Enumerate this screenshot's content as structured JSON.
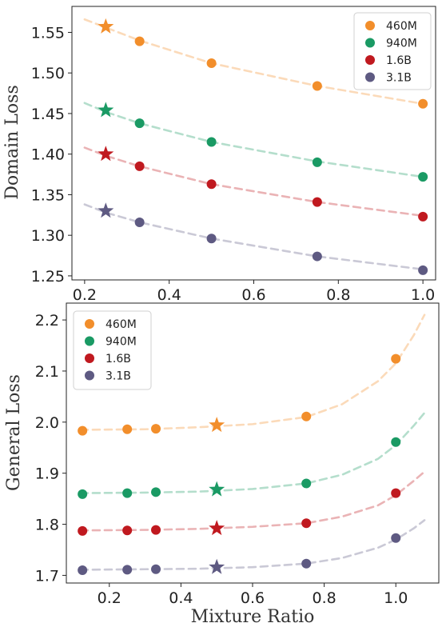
{
  "colors": {
    "460M": "#F28E2B",
    "940M": "#1A9A64",
    "1.6B": "#C0191F",
    "3.1B": "#5E5A82"
  },
  "chart_data": [
    {
      "type": "scatter",
      "title": "",
      "xlabel": "",
      "ylabel": "Domain Loss",
      "xlim": [
        0.17,
        1.03
      ],
      "ylim": [
        1.245,
        1.582
      ],
      "xticks": [
        "0.2",
        "0.4",
        "0.6",
        "0.8",
        "1.0"
      ],
      "yticks": [
        "1.25",
        "1.30",
        "1.35",
        "1.40",
        "1.45",
        "1.50",
        "1.55"
      ],
      "grid": false,
      "legend": "top-right",
      "fit_x_range": [
        0.2,
        1.0
      ],
      "series": [
        {
          "name": "460M",
          "x": [
            0.33,
            0.5,
            0.75,
            1.0
          ],
          "y": [
            1.539,
            1.512,
            1.484,
            1.462
          ],
          "star": {
            "x": 0.25,
            "y": 1.557
          },
          "fit": {
            "x": [
              0.2,
              0.25,
              0.33,
              0.5,
              0.75,
              1.0
            ],
            "y": [
              1.566,
              1.556,
              1.54,
              1.512,
              1.484,
              1.462
            ]
          }
        },
        {
          "name": "940M",
          "x": [
            0.33,
            0.5,
            0.75,
            1.0
          ],
          "y": [
            1.438,
            1.415,
            1.39,
            1.372
          ],
          "star": {
            "x": 0.25,
            "y": 1.454
          },
          "fit": {
            "x": [
              0.2,
              0.25,
              0.33,
              0.5,
              0.75,
              1.0
            ],
            "y": [
              1.463,
              1.452,
              1.438,
              1.415,
              1.391,
              1.372
            ]
          }
        },
        {
          "name": "1.6B",
          "x": [
            0.33,
            0.5,
            0.75,
            1.0
          ],
          "y": [
            1.385,
            1.363,
            1.341,
            1.323
          ],
          "star": {
            "x": 0.25,
            "y": 1.4
          },
          "fit": {
            "x": [
              0.2,
              0.25,
              0.33,
              0.5,
              0.75,
              1.0
            ],
            "y": [
              1.408,
              1.398,
              1.385,
              1.363,
              1.341,
              1.324
            ]
          }
        },
        {
          "name": "3.1B",
          "x": [
            0.33,
            0.5,
            0.75,
            1.0
          ],
          "y": [
            1.316,
            1.296,
            1.274,
            1.257
          ],
          "star": {
            "x": 0.25,
            "y": 1.33
          },
          "fit": {
            "x": [
              0.2,
              0.25,
              0.33,
              0.5,
              0.75,
              1.0
            ],
            "y": [
              1.338,
              1.328,
              1.316,
              1.296,
              1.274,
              1.258
            ]
          }
        }
      ]
    },
    {
      "type": "scatter",
      "title": "",
      "xlabel": "Mixture Ratio",
      "ylabel": "General  Loss",
      "xlim": [
        0.08,
        1.12
      ],
      "ylim": [
        1.685,
        2.233
      ],
      "xticks": [
        "0.2",
        "0.4",
        "0.6",
        "0.8",
        "1.0"
      ],
      "yticks": [
        "1.7",
        "1.8",
        "1.9",
        "2.0",
        "2.1",
        "2.2"
      ],
      "grid": false,
      "legend": "top-left",
      "fit_x_range": [
        0.12,
        1.08
      ],
      "series": [
        {
          "name": "460M",
          "x": [
            0.125,
            0.25,
            0.33,
            0.75,
            1.0
          ],
          "y": [
            1.983,
            1.986,
            1.987,
            2.011,
            2.124
          ],
          "star": {
            "x": 0.5,
            "y": 1.994
          },
          "fit": {
            "x": [
              0.12,
              0.3,
              0.45,
              0.6,
              0.75,
              0.85,
              0.95,
              1.0,
              1.05,
              1.08
            ],
            "y": [
              1.985,
              1.986,
              1.99,
              1.996,
              2.01,
              2.035,
              2.08,
              2.115,
              2.17,
              2.21
            ]
          }
        },
        {
          "name": "940M",
          "x": [
            0.125,
            0.25,
            0.33,
            0.75,
            1.0
          ],
          "y": [
            1.859,
            1.861,
            1.863,
            1.88,
            1.961
          ],
          "star": {
            "x": 0.5,
            "y": 1.868
          },
          "fit": {
            "x": [
              0.12,
              0.3,
              0.45,
              0.6,
              0.75,
              0.85,
              0.95,
              1.0,
              1.05,
              1.08
            ],
            "y": [
              1.861,
              1.862,
              1.864,
              1.869,
              1.88,
              1.897,
              1.928,
              1.955,
              1.993,
              2.018
            ]
          }
        },
        {
          "name": "1.6B",
          "x": [
            0.125,
            0.25,
            0.33,
            0.75,
            1.0
          ],
          "y": [
            1.787,
            1.788,
            1.789,
            1.802,
            1.861
          ],
          "star": {
            "x": 0.5,
            "y": 1.792
          },
          "fit": {
            "x": [
              0.12,
              0.3,
              0.45,
              0.6,
              0.75,
              0.85,
              0.95,
              1.0,
              1.05,
              1.08
            ],
            "y": [
              1.788,
              1.789,
              1.791,
              1.795,
              1.802,
              1.815,
              1.837,
              1.857,
              1.885,
              1.903
            ]
          }
        },
        {
          "name": "3.1B",
          "x": [
            0.125,
            0.25,
            0.33,
            0.75,
            1.0
          ],
          "y": [
            1.71,
            1.711,
            1.712,
            1.723,
            1.773
          ],
          "star": {
            "x": 0.5,
            "y": 1.716
          },
          "fit": {
            "x": [
              0.12,
              0.3,
              0.45,
              0.6,
              0.75,
              0.85,
              0.95,
              1.0,
              1.05,
              1.08
            ],
            "y": [
              1.711,
              1.712,
              1.713,
              1.716,
              1.723,
              1.734,
              1.754,
              1.77,
              1.792,
              1.808
            ]
          }
        }
      ]
    }
  ]
}
